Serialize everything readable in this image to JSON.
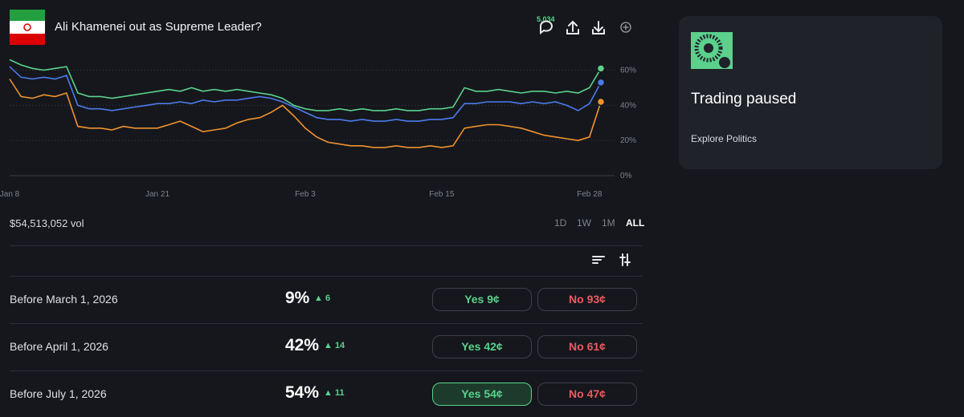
{
  "header": {
    "title": "Ali Khamenei out as Supreme Leader?",
    "comments": "5,034"
  },
  "chart_data": {
    "type": "line",
    "categories": [
      "Jan 8",
      null,
      null,
      null,
      null,
      null,
      null,
      null,
      null,
      null,
      null,
      null,
      null,
      "Jan 21",
      null,
      null,
      null,
      null,
      null,
      null,
      null,
      null,
      null,
      null,
      null,
      null,
      "Feb 3",
      null,
      null,
      null,
      null,
      null,
      null,
      null,
      null,
      null,
      null,
      null,
      "Feb 15",
      null,
      null,
      null,
      null,
      null,
      null,
      null,
      null,
      null,
      null,
      null,
      null,
      "Feb 28",
      null
    ],
    "series": [
      {
        "color": "#5bd18c",
        "values": [
          66,
          63,
          61,
          60,
          61,
          62,
          47,
          45,
          45,
          44,
          45,
          46,
          47,
          48,
          49,
          48,
          50,
          48,
          49,
          48,
          49,
          48,
          47,
          46,
          44,
          40,
          38,
          37,
          37,
          38,
          37,
          38,
          37,
          37,
          38,
          37,
          37,
          38,
          38,
          39,
          50,
          48,
          48,
          49,
          48,
          47,
          48,
          48,
          47,
          48,
          47,
          50,
          61
        ]
      },
      {
        "color": "#4b7bec",
        "values": [
          62,
          56,
          55,
          56,
          55,
          57,
          40,
          38,
          38,
          37,
          38,
          39,
          40,
          41,
          41,
          42,
          41,
          43,
          42,
          43,
          43,
          44,
          45,
          44,
          42,
          39,
          36,
          33,
          32,
          32,
          31,
          32,
          31,
          31,
          32,
          31,
          31,
          32,
          32,
          33,
          41,
          41,
          42,
          42,
          42,
          41,
          42,
          41,
          42,
          40,
          37,
          41,
          53
        ]
      },
      {
        "color": "#f0922e",
        "values": [
          55,
          45,
          44,
          46,
          45,
          47,
          28,
          27,
          27,
          26,
          28,
          27,
          27,
          27,
          29,
          31,
          28,
          25,
          26,
          27,
          30,
          32,
          33,
          36,
          40,
          34,
          27,
          22,
          19,
          18,
          17,
          17,
          16,
          16,
          17,
          16,
          16,
          17,
          16,
          17,
          27,
          28,
          29,
          29,
          28,
          27,
          25,
          23,
          22,
          21,
          20,
          22,
          42
        ]
      }
    ],
    "ylim": [
      0,
      68
    ],
    "yticks": [
      {
        "value": 0,
        "label": "0%"
      },
      {
        "value": 20,
        "label": "20%"
      },
      {
        "value": 40,
        "label": "40%"
      },
      {
        "value": 60,
        "label": "60%"
      }
    ],
    "grid": true
  },
  "volume": "$54,513,052 vol",
  "ranges": [
    "1D",
    "1W",
    "1M",
    "ALL"
  ],
  "active_range": 3,
  "outcomes": [
    {
      "label": "Before March 1, 2026",
      "percent": "9%",
      "change": "▲ 6",
      "yes": "Yes 9¢",
      "no": "No 93¢",
      "selected": false
    },
    {
      "label": "Before April 1, 2026",
      "percent": "42%",
      "change": "▲ 14",
      "yes": "Yes 42¢",
      "no": "No 61¢",
      "selected": false
    },
    {
      "label": "Before July 1, 2026",
      "percent": "54%",
      "change": "▲ 11",
      "yes": "Yes 54¢",
      "no": "No 47¢",
      "selected": true
    }
  ],
  "sidebar": {
    "title": "Trading paused",
    "link": "Explore Politics"
  }
}
